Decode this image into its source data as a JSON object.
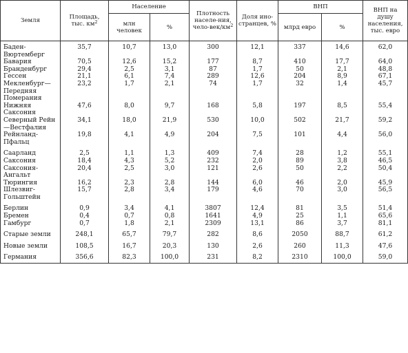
{
  "table": {
    "headers": {
      "land": "Земля",
      "area": "Площадь, тыс. км",
      "area_sup": "2",
      "population": "Население",
      "pop_mln": "млн человек",
      "pop_pct": "%",
      "density": "Плотность населе-ния, чело-век/км",
      "density_sup": "2",
      "foreign_share": "Доля ино-странцев, %",
      "gdp": "ВНП",
      "gdp_bn": "млрд евро",
      "gdp_pct": "%",
      "gdp_per_capita": "ВНП на душу населения, тыс. евро"
    },
    "rows": [
      {
        "land": "Баден-Вюртемберг",
        "area": "35,7",
        "pop": "10,7",
        "pop_pct": "13,0",
        "density": "300",
        "foreign": "12,1",
        "gdp": "337",
        "gdp_pct": "14,6",
        "gdp_pc": "62,0"
      },
      {
        "land": "Бавария",
        "area": "70,5",
        "pop": "12,6",
        "pop_pct": "15,2",
        "density": "177",
        "foreign": "8,7",
        "gdp": "410",
        "gdp_pct": "17,7",
        "gdp_pc": "64,0"
      },
      {
        "land": "Бранденбург",
        "area": "29,4",
        "pop": "2,5",
        "pop_pct": "3,1",
        "density": "87",
        "foreign": "1,7",
        "gdp": "50",
        "gdp_pct": "2,1",
        "gdp_pc": "48,8"
      },
      {
        "land": "Гессен",
        "area": "21,1",
        "pop": "6,1",
        "pop_pct": "7,4",
        "density": "289",
        "foreign": "12,6",
        "gdp": "204",
        "gdp_pct": "8,9",
        "gdp_pc": "67,1"
      },
      {
        "land": "Мекленбург—Передняя Померания",
        "area": "23,2",
        "pop": "1,7",
        "pop_pct": "2,1",
        "density": "74",
        "foreign": "1,7",
        "gdp": "32",
        "gdp_pct": "1,4",
        "gdp_pc": "45,7"
      },
      {
        "land": "Нижняя Саксония",
        "area": "47,6",
        "pop": "8,0",
        "pop_pct": "9,7",
        "density": "168",
        "foreign": "5,8",
        "gdp": "197",
        "gdp_pct": "8,5",
        "gdp_pc": "55,4"
      },
      {
        "land": "Северный Рейн—Вестфалия",
        "area": "34,1",
        "pop": "18,0",
        "pop_pct": "21,9",
        "density": "530",
        "foreign": "10,0",
        "gdp": "502",
        "gdp_pct": "21,7",
        "gdp_pc": "59,2"
      },
      {
        "land": "Рейнланд-Пфальц",
        "area": "19,8",
        "pop": "4,1",
        "pop_pct": "4,9",
        "density": "204",
        "foreign": "7,5",
        "gdp": "101",
        "gdp_pct": "4,4",
        "gdp_pc": "56,0"
      },
      {
        "land": "Саарланд",
        "area": "2,5",
        "pop": "1,1",
        "pop_pct": "1,3",
        "density": "409",
        "foreign": "7,4",
        "gdp": "28",
        "gdp_pct": "1,2",
        "gdp_pc": "55,1"
      },
      {
        "land": "Саксония",
        "area": "18,4",
        "pop": "4,3",
        "pop_pct": "5,2",
        "density": "232",
        "foreign": "2,0",
        "gdp": "89",
        "gdp_pct": "3,8",
        "gdp_pc": "46,5"
      },
      {
        "land": "Саксония-Ангальт",
        "area": "20,4",
        "pop": "2,5",
        "pop_pct": "3,0",
        "density": "121",
        "foreign": "2,6",
        "gdp": "50",
        "gdp_pct": "2,2",
        "gdp_pc": "50,4"
      },
      {
        "land": "Тюрингия",
        "area": "16,2",
        "pop": "2,3",
        "pop_pct": "2,8",
        "density": "144",
        "foreign": "6,0",
        "gdp": "46",
        "gdp_pct": "2,0",
        "gdp_pc": "45,9"
      },
      {
        "land": "Шлезвиг-Гольштейн",
        "area": "15,7",
        "pop": "2,8",
        "pop_pct": "3,4",
        "density": "179",
        "foreign": "4,6",
        "gdp": "70",
        "gdp_pct": "3,0",
        "gdp_pc": "56,5"
      },
      {
        "land": "Берлин",
        "area": "0,9",
        "pop": "3,4",
        "pop_pct": "4,1",
        "density": "3807",
        "foreign": "12,4",
        "gdp": "81",
        "gdp_pct": "3,5",
        "gdp_pc": "51,4"
      },
      {
        "land": "Бремен",
        "area": "0,4",
        "pop": "0,7",
        "pop_pct": "0,8",
        "density": "1641",
        "foreign": "4,9",
        "gdp": "25",
        "gdp_pct": "1,1",
        "gdp_pc": "65,6"
      },
      {
        "land": "Гамбург",
        "area": "0,7",
        "pop": "1,8",
        "pop_pct": "2,1",
        "density": "2309",
        "foreign": "13,1",
        "gdp": "86",
        "gdp_pct": "3,7",
        "gdp_pc": "81,1"
      },
      {
        "land": "Старые земли",
        "area": "248,1",
        "pop": "65,7",
        "pop_pct": "79,7",
        "density": "282",
        "foreign": "8,6",
        "gdp": "2050",
        "gdp_pct": "88,7",
        "gdp_pc": "61,2"
      },
      {
        "land": "Новые земли",
        "area": "108,5",
        "pop": "16,7",
        "pop_pct": "20,3",
        "density": "130",
        "foreign": "2,6",
        "gdp": "260",
        "gdp_pct": "11,3",
        "gdp_pc": "47,6"
      },
      {
        "land": "Германия",
        "area": "356,6",
        "pop": "82,3",
        "pop_pct": "100,0",
        "density": "231",
        "foreign": "8,2",
        "gdp": "2310",
        "gdp_pct": "100,0",
        "gdp_pc": "59,0"
      }
    ]
  }
}
